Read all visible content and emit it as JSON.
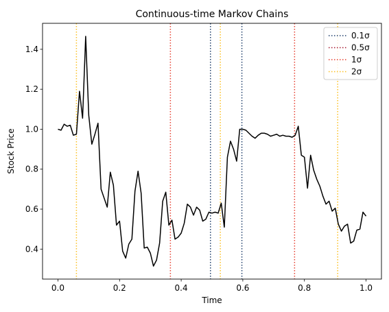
{
  "chart_data": {
    "type": "line",
    "title": "Continuous-time Markov Chains",
    "xlabel": "Time",
    "ylabel": "Stock Price",
    "xlim": [
      -0.05,
      1.05
    ],
    "ylim": [
      0.25,
      1.53
    ],
    "xticks": [
      0.0,
      0.2,
      0.4,
      0.6,
      0.8,
      1.0
    ],
    "xtick_labels": [
      "0.0",
      "0.2",
      "0.4",
      "0.6",
      "0.8",
      "1.0"
    ],
    "yticks": [
      0.4,
      0.6,
      0.8,
      1.0,
      1.2,
      1.4
    ],
    "ytick_labels": [
      "0.4",
      "0.6",
      "0.8",
      "1.0",
      "1.2",
      "1.4"
    ],
    "grid": false,
    "legend_position": "top-right",
    "series": [
      {
        "color": "#000000",
        "style": "solid",
        "x": [
          0.0,
          0.01,
          0.02,
          0.03,
          0.04,
          0.05,
          0.06,
          0.07,
          0.08,
          0.09,
          0.1,
          0.11,
          0.12,
          0.13,
          0.14,
          0.15,
          0.16,
          0.17,
          0.18,
          0.19,
          0.2,
          0.21,
          0.22,
          0.23,
          0.24,
          0.25,
          0.26,
          0.27,
          0.28,
          0.29,
          0.3,
          0.31,
          0.32,
          0.33,
          0.34,
          0.35,
          0.36,
          0.37,
          0.38,
          0.39,
          0.4,
          0.41,
          0.42,
          0.43,
          0.44,
          0.45,
          0.46,
          0.47,
          0.48,
          0.49,
          0.5,
          0.51,
          0.52,
          0.53,
          0.54,
          0.55,
          0.56,
          0.57,
          0.58,
          0.59,
          0.6,
          0.61,
          0.62,
          0.63,
          0.64,
          0.65,
          0.66,
          0.67,
          0.68,
          0.69,
          0.7,
          0.71,
          0.72,
          0.73,
          0.74,
          0.75,
          0.76,
          0.77,
          0.78,
          0.79,
          0.8,
          0.81,
          0.82,
          0.83,
          0.84,
          0.85,
          0.86,
          0.87,
          0.88,
          0.89,
          0.9,
          0.91,
          0.92,
          0.93,
          0.94,
          0.95,
          0.96,
          0.97,
          0.98,
          0.99,
          1.0
        ],
        "y": [
          1.0,
          0.995,
          1.025,
          1.015,
          1.02,
          0.97,
          0.975,
          1.19,
          1.055,
          1.465,
          1.07,
          0.925,
          0.975,
          1.03,
          0.7,
          0.655,
          0.61,
          0.785,
          0.72,
          0.52,
          0.54,
          0.39,
          0.355,
          0.425,
          0.45,
          0.69,
          0.79,
          0.68,
          0.405,
          0.41,
          0.38,
          0.315,
          0.345,
          0.43,
          0.64,
          0.685,
          0.52,
          0.545,
          0.45,
          0.46,
          0.48,
          0.53,
          0.625,
          0.61,
          0.57,
          0.61,
          0.595,
          0.54,
          0.55,
          0.585,
          0.58,
          0.585,
          0.58,
          0.63,
          0.51,
          0.86,
          0.94,
          0.9,
          0.84,
          1.0,
          1.0,
          0.995,
          0.98,
          0.965,
          0.955,
          0.97,
          0.98,
          0.98,
          0.975,
          0.965,
          0.97,
          0.975,
          0.965,
          0.97,
          0.965,
          0.965,
          0.96,
          0.97,
          1.015,
          0.87,
          0.86,
          0.705,
          0.87,
          0.795,
          0.75,
          0.715,
          0.665,
          0.625,
          0.64,
          0.59,
          0.605,
          0.525,
          0.49,
          0.515,
          0.525,
          0.43,
          0.44,
          0.495,
          0.5,
          0.585,
          0.565
        ]
      }
    ],
    "vlines": [
      {
        "x": 0.06,
        "color": "#fcbf1e",
        "style": "dotted"
      },
      {
        "x": 0.365,
        "color": "#e63d2e",
        "style": "dotted"
      },
      {
        "x": 0.495,
        "color": "#1d3d6a",
        "style": "dotted"
      },
      {
        "x": 0.527,
        "color": "#fcbf1e",
        "style": "dotted"
      },
      {
        "x": 0.597,
        "color": "#1d3d6a",
        "style": "dotted"
      },
      {
        "x": 0.768,
        "color": "#e63d2e",
        "style": "dotted"
      },
      {
        "x": 0.908,
        "color": "#fcbf1e",
        "style": "dotted"
      }
    ],
    "legend": [
      {
        "label": "0.1σ",
        "color": "#1d3d6a",
        "style": "dotted"
      },
      {
        "label": "0.5σ",
        "color": "#a4162e",
        "style": "dotted"
      },
      {
        "label": "1σ",
        "color": "#e63d2e",
        "style": "dotted"
      },
      {
        "label": "2σ",
        "color": "#fcbf1e",
        "style": "dotted"
      }
    ]
  }
}
